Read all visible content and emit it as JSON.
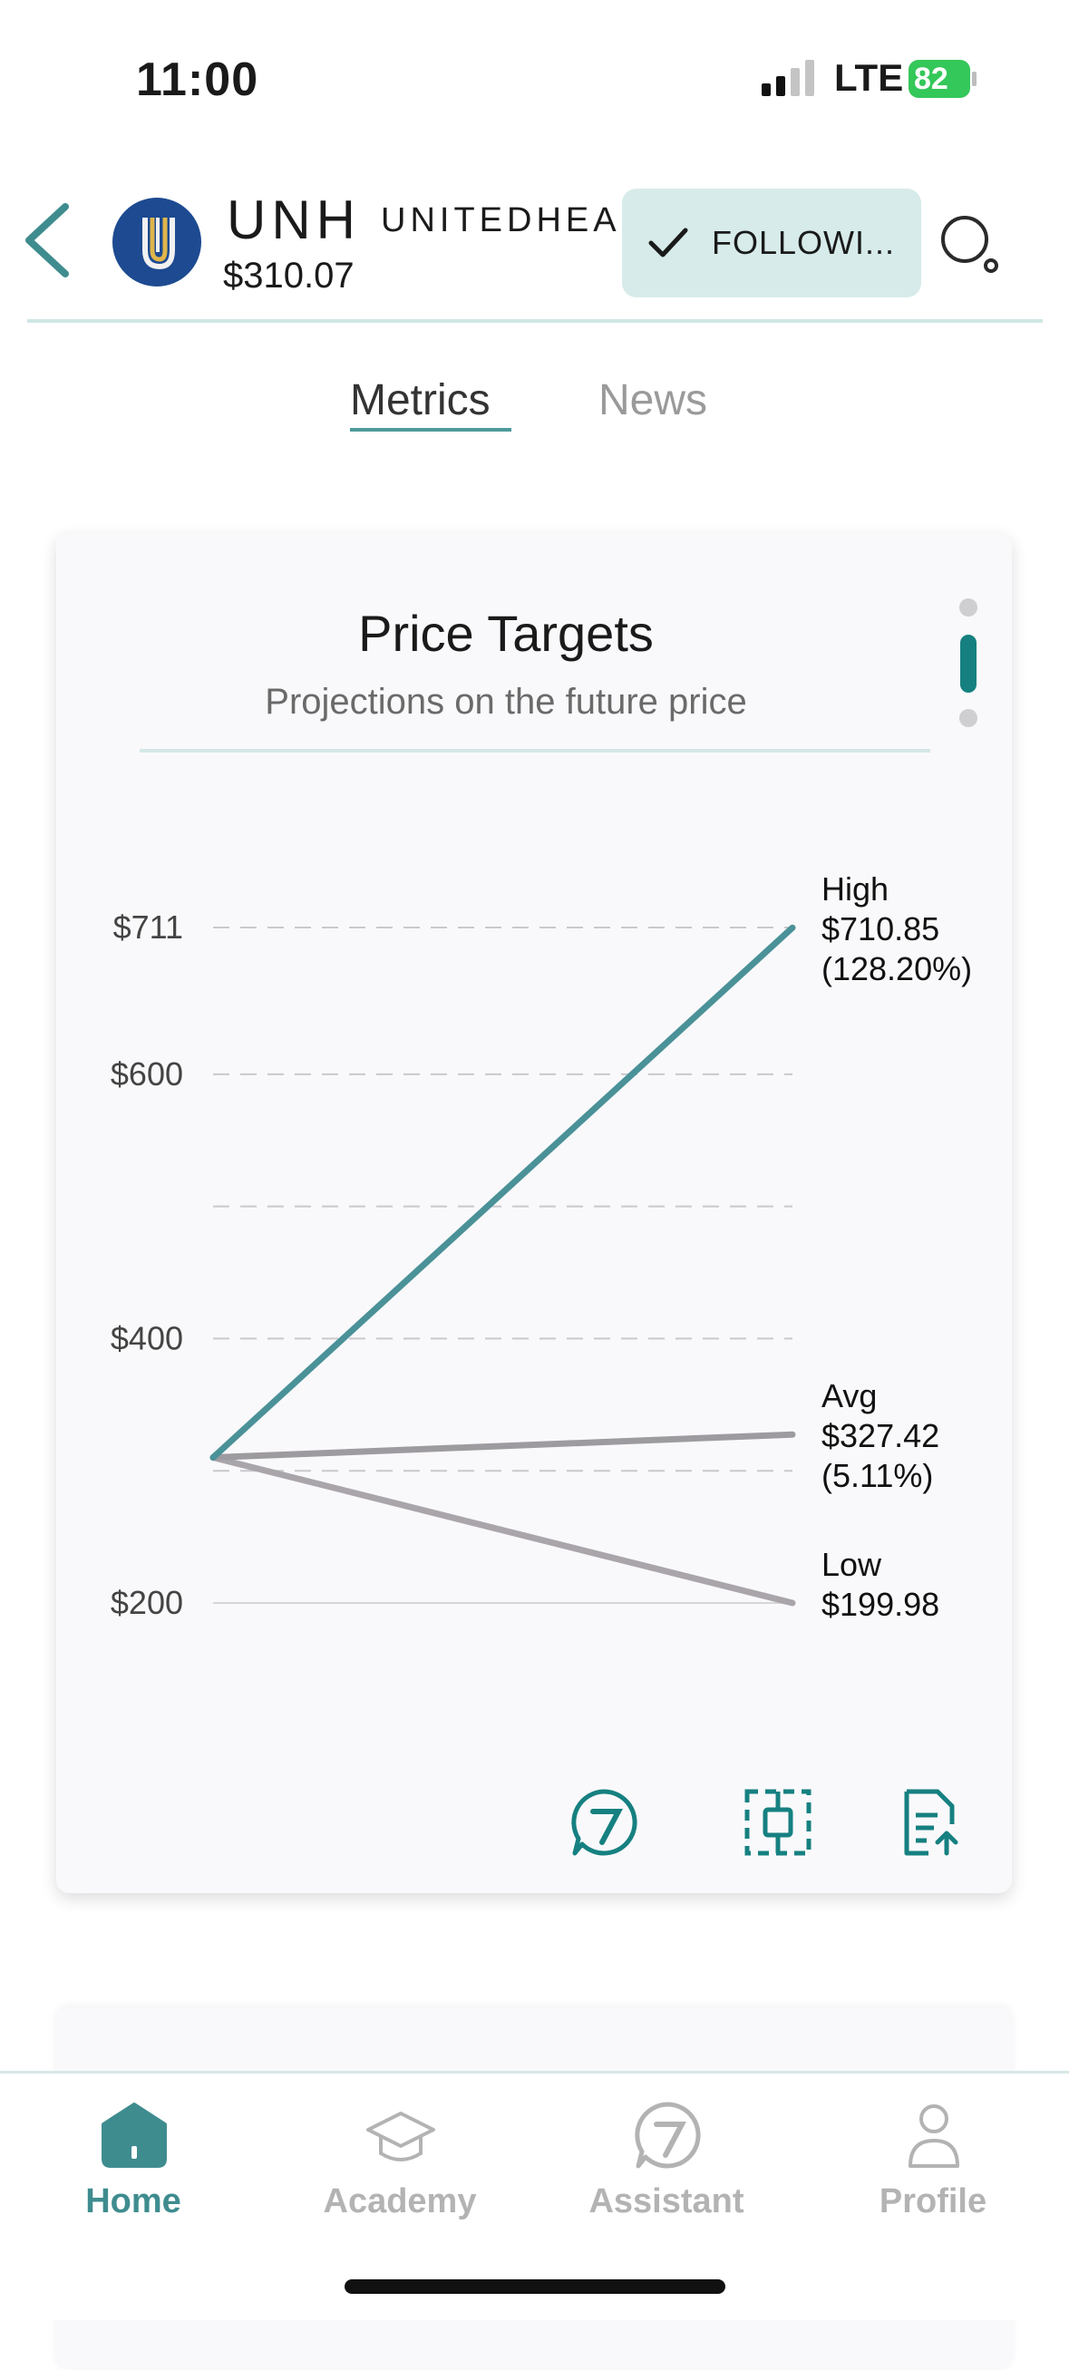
{
  "status_bar": {
    "time": "11:00",
    "network": "LTE",
    "battery": "82"
  },
  "header": {
    "ticker": "UNH",
    "company": "UNITEDHEA",
    "price": "$310.07",
    "follow_label": "FOLLOWI..."
  },
  "tabs": [
    {
      "label": "Metrics",
      "active": true
    },
    {
      "label": "News",
      "active": false
    }
  ],
  "card": {
    "title": "Price Targets",
    "subtitle": "Projections on the future price"
  },
  "chart_data": {
    "type": "line",
    "title": "Price Targets",
    "subtitle": "Projections on the future price",
    "current_price": 310.07,
    "ylim": [
      200,
      711
    ],
    "y_ticks": [
      {
        "value": 711,
        "label": "$711"
      },
      {
        "value": 600,
        "label": "$600"
      },
      {
        "value": 500,
        "label": ""
      },
      {
        "value": 400,
        "label": "$400"
      },
      {
        "value": 300,
        "label": ""
      },
      {
        "value": 200,
        "label": "$200"
      }
    ],
    "grid": true,
    "series": [
      {
        "name": "High",
        "start": 310.07,
        "end": 710.85,
        "value_label": "$710.85",
        "pct_label": "(128.20%)",
        "color": "#4a9198"
      },
      {
        "name": "Avg",
        "start": 310.07,
        "end": 327.42,
        "value_label": "$327.42",
        "pct_label": "(5.11%)",
        "color": "#9e9ba0"
      },
      {
        "name": "Low",
        "start": 310.07,
        "end": 199.98,
        "value_label": "$199.98",
        "pct_label": "",
        "color": "#a9a5aa"
      }
    ]
  },
  "icons": {
    "ask": "assistant-chat-icon",
    "crop": "crop-select-icon",
    "export": "export-document-icon"
  },
  "colors": {
    "accent": "#3f8c8f",
    "follow_bg": "#d6ebea",
    "logo_bg": "#1d4a91"
  },
  "nav": [
    {
      "label": "Home",
      "icon": "home-icon",
      "active": true
    },
    {
      "label": "Academy",
      "icon": "graduation-cap-icon",
      "active": false
    },
    {
      "label": "Assistant",
      "icon": "assistant-icon",
      "active": false
    },
    {
      "label": "Profile",
      "icon": "profile-icon",
      "active": false
    }
  ]
}
